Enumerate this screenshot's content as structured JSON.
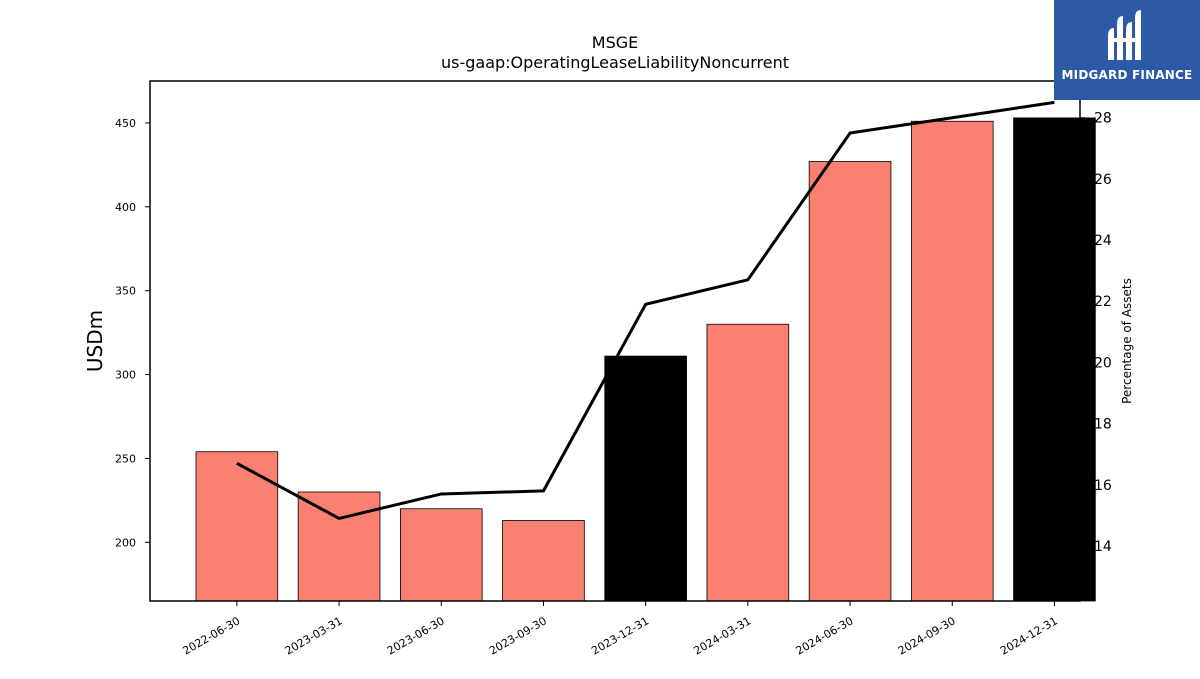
{
  "chart_data": {
    "type": "bar",
    "title": "MSGE",
    "subtitle": "us-gaap:OperatingLeaseLiabilityNoncurrent",
    "ylabel": "USDm",
    "y2label": "Percentage of Assets",
    "categories": [
      "2022-06-30",
      "2023-03-31",
      "2023-06-30",
      "2023-09-30",
      "2023-12-31",
      "2024-03-31",
      "2024-06-30",
      "2024-09-30",
      "2024-12-31"
    ],
    "series": [
      {
        "type": "bar",
        "axis": "left",
        "values": [
          254,
          230,
          220,
          213,
          311,
          330,
          427,
          451,
          453
        ],
        "colors": [
          "#fa8072",
          "#fa8072",
          "#fa8072",
          "#fa8072",
          "#000000",
          "#fa8072",
          "#fa8072",
          "#fa8072",
          "#000000"
        ]
      },
      {
        "type": "line",
        "axis": "right",
        "color": "#000000",
        "values": [
          16.7,
          14.9,
          15.7,
          15.8,
          21.9,
          22.7,
          27.5,
          28.0,
          28.5
        ]
      }
    ],
    "ylim": [
      165,
      475
    ],
    "yticks": [
      200,
      250,
      300,
      350,
      400,
      450
    ],
    "y2lim": [
      12.2,
      29.2
    ],
    "y2ticks": [
      14,
      16,
      18,
      20,
      22,
      24,
      26,
      28
    ],
    "grid": false,
    "legend": "none"
  },
  "logo": {
    "text": "MIDGARD FINANCE",
    "bg_color": "#2d5aa6",
    "icon": "midgard-logo-icon"
  }
}
